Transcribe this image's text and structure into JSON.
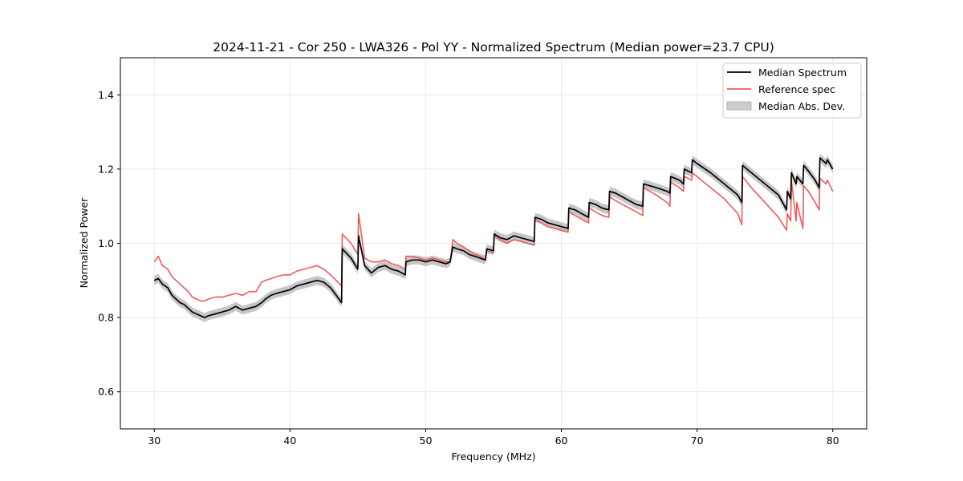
{
  "chart_data": {
    "type": "line",
    "title": "2024-11-21 - Cor 250 - LWA326 - Pol YY - Normalized Spectrum (Median power=23.7 CPU)",
    "xlabel": "Frequency (MHz)",
    "ylabel": "Normalized Power",
    "xlim": [
      27.5,
      82.5
    ],
    "ylim": [
      0.5,
      1.5
    ],
    "xticks": [
      30,
      40,
      50,
      60,
      70,
      80
    ],
    "xtick_labels": [
      "30",
      "40",
      "50",
      "60",
      "70",
      "80"
    ],
    "yticks": [
      0.6,
      0.8,
      1.0,
      1.2,
      1.4
    ],
    "ytick_labels": [
      "0.6",
      "0.8",
      "1.0",
      "1.2",
      "1.4"
    ],
    "grid": true,
    "legend_position": "top-right",
    "colors": {
      "median": "#000000",
      "reference": "#f05a5a",
      "mad": "#b8b8b8"
    },
    "series": [
      {
        "name": "Median Spectrum",
        "x": [
          30.0,
          30.3,
          30.6,
          31.0,
          31.3,
          31.6,
          31.9,
          32.2,
          32.5,
          32.8,
          33.1,
          33.4,
          33.7,
          34.0,
          34.5,
          35.0,
          35.5,
          36.0,
          36.5,
          37.0,
          37.5,
          37.9,
          38.2,
          38.6,
          39.0,
          39.5,
          40.0,
          40.5,
          41.0,
          41.5,
          42.0,
          42.5,
          43.0,
          43.4,
          43.8,
          43.85,
          44.5,
          45.0,
          45.05,
          45.5,
          46.0,
          46.5,
          47.0,
          47.5,
          48.0,
          48.5,
          48.55,
          49.0,
          49.5,
          50.0,
          50.5,
          51.0,
          51.5,
          51.8,
          52.0,
          52.3,
          52.8,
          53.2,
          53.6,
          54.0,
          54.4,
          54.5,
          55.0,
          55.05,
          55.5,
          56.0,
          56.5,
          57.0,
          57.5,
          58.0,
          58.05,
          58.5,
          59.0,
          59.5,
          60.0,
          60.5,
          60.55,
          61.0,
          61.5,
          62.0,
          62.05,
          62.5,
          63.0,
          63.5,
          63.55,
          64.0,
          64.5,
          65.0,
          65.5,
          66.0,
          66.05,
          67.0,
          67.8,
          68.0,
          68.05,
          68.7,
          69.0,
          69.05,
          69.6,
          69.65,
          70.0,
          71.0,
          72.0,
          73.0,
          73.3,
          73.35,
          74.0,
          75.0,
          76.0,
          76.6,
          76.65,
          76.9,
          76.95,
          77.3,
          77.35,
          77.8,
          77.85,
          78.2,
          78.7,
          79.0,
          79.05,
          79.5,
          79.6,
          80.0
        ],
        "values": [
          0.9,
          0.905,
          0.89,
          0.88,
          0.86,
          0.85,
          0.84,
          0.835,
          0.825,
          0.815,
          0.81,
          0.805,
          0.8,
          0.805,
          0.81,
          0.815,
          0.82,
          0.83,
          0.82,
          0.825,
          0.83,
          0.84,
          0.85,
          0.86,
          0.865,
          0.87,
          0.875,
          0.885,
          0.89,
          0.895,
          0.9,
          0.895,
          0.88,
          0.86,
          0.84,
          0.985,
          0.96,
          0.93,
          1.02,
          0.94,
          0.92,
          0.935,
          0.94,
          0.93,
          0.925,
          0.915,
          0.95,
          0.955,
          0.955,
          0.95,
          0.955,
          0.95,
          0.945,
          0.95,
          0.99,
          0.985,
          0.98,
          0.97,
          0.965,
          0.96,
          0.955,
          0.985,
          0.98,
          1.025,
          1.015,
          1.01,
          1.02,
          1.015,
          1.01,
          1.005,
          1.07,
          1.065,
          1.055,
          1.05,
          1.045,
          1.04,
          1.095,
          1.09,
          1.08,
          1.07,
          1.11,
          1.105,
          1.095,
          1.09,
          1.14,
          1.135,
          1.125,
          1.115,
          1.105,
          1.1,
          1.16,
          1.15,
          1.14,
          1.135,
          1.18,
          1.17,
          1.16,
          1.2,
          1.19,
          1.225,
          1.215,
          1.19,
          1.16,
          1.13,
          1.11,
          1.21,
          1.19,
          1.16,
          1.13,
          1.09,
          1.14,
          1.12,
          1.19,
          1.16,
          1.18,
          1.16,
          1.21,
          1.195,
          1.17,
          1.15,
          1.23,
          1.215,
          1.225,
          1.2
        ]
      },
      {
        "name": "Reference spec",
        "x": [
          30.0,
          30.3,
          30.6,
          31.0,
          31.3,
          31.6,
          31.9,
          32.2,
          32.5,
          32.8,
          33.1,
          33.4,
          33.7,
          34.0,
          34.5,
          35.0,
          35.5,
          36.0,
          36.5,
          37.0,
          37.5,
          37.9,
          38.2,
          38.6,
          39.0,
          39.5,
          40.0,
          40.5,
          41.0,
          41.5,
          42.0,
          42.5,
          43.0,
          43.4,
          43.8,
          43.85,
          44.5,
          45.0,
          45.05,
          45.5,
          46.0,
          46.5,
          47.0,
          47.5,
          48.0,
          48.5,
          48.55,
          49.0,
          49.5,
          50.0,
          50.5,
          51.0,
          51.5,
          51.8,
          52.0,
          52.3,
          52.8,
          53.2,
          53.6,
          54.0,
          54.4,
          54.5,
          55.0,
          55.05,
          55.5,
          56.0,
          56.5,
          57.0,
          57.5,
          58.0,
          58.05,
          58.5,
          59.0,
          59.5,
          60.0,
          60.5,
          60.55,
          61.0,
          61.5,
          62.0,
          62.05,
          62.5,
          63.0,
          63.5,
          63.55,
          64.0,
          64.5,
          65.0,
          65.5,
          66.0,
          66.05,
          67.0,
          67.8,
          68.0,
          68.05,
          68.7,
          69.0,
          69.05,
          69.6,
          69.65,
          70.0,
          71.0,
          72.0,
          73.0,
          73.3,
          73.35,
          74.0,
          75.0,
          76.0,
          76.6,
          76.65,
          76.9,
          76.95,
          77.3,
          77.35,
          77.8,
          77.85,
          78.2,
          78.7,
          79.0,
          79.05,
          79.5,
          79.6,
          80.0
        ],
        "values": [
          0.95,
          0.965,
          0.94,
          0.93,
          0.91,
          0.9,
          0.89,
          0.88,
          0.87,
          0.855,
          0.85,
          0.845,
          0.845,
          0.85,
          0.855,
          0.855,
          0.86,
          0.865,
          0.86,
          0.87,
          0.87,
          0.895,
          0.9,
          0.905,
          0.91,
          0.915,
          0.915,
          0.925,
          0.93,
          0.935,
          0.94,
          0.93,
          0.915,
          0.9,
          0.885,
          1.025,
          1.0,
          0.97,
          1.08,
          0.96,
          0.95,
          0.95,
          0.955,
          0.945,
          0.94,
          0.93,
          0.965,
          0.965,
          0.96,
          0.955,
          0.96,
          0.955,
          0.95,
          0.95,
          1.01,
          1.0,
          0.99,
          0.98,
          0.97,
          0.965,
          0.955,
          0.98,
          0.975,
          1.02,
          1.01,
          1.0,
          1.01,
          1.005,
          1.0,
          0.995,
          1.065,
          1.055,
          1.045,
          1.04,
          1.035,
          1.03,
          1.085,
          1.075,
          1.065,
          1.055,
          1.095,
          1.085,
          1.075,
          1.07,
          1.125,
          1.115,
          1.105,
          1.095,
          1.085,
          1.075,
          1.15,
          1.13,
          1.11,
          1.1,
          1.165,
          1.15,
          1.14,
          1.18,
          1.17,
          1.19,
          1.18,
          1.15,
          1.12,
          1.08,
          1.05,
          1.18,
          1.15,
          1.11,
          1.07,
          1.035,
          1.08,
          1.06,
          1.17,
          1.06,
          1.11,
          1.04,
          1.155,
          1.14,
          1.11,
          1.09,
          1.175,
          1.16,
          1.17,
          1.14
        ]
      },
      {
        "name": "Median Abs. Dev.",
        "kind": "band",
        "band_halfwidth": 0.012
      }
    ]
  }
}
